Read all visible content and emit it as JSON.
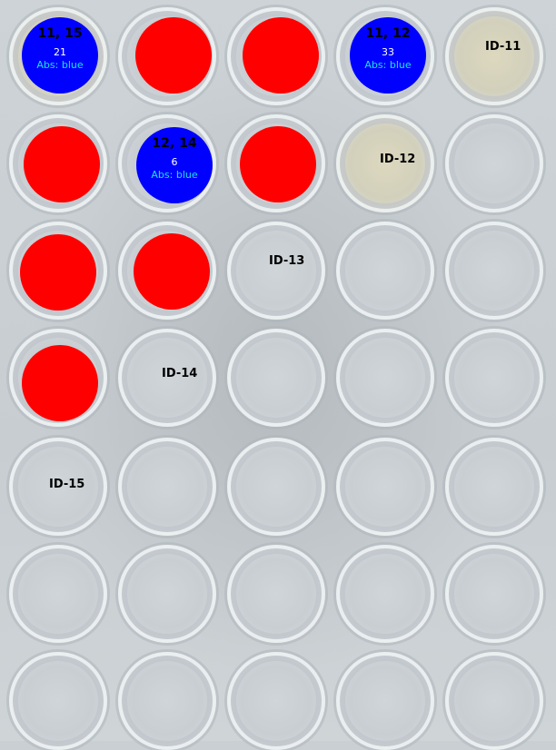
{
  "detections": [
    {
      "coord": "11, 15",
      "count": "21",
      "abs": "Abs: blue"
    },
    {
      "coord": "12, 14",
      "count": "6",
      "abs": "Abs: blue"
    },
    {
      "coord": "11, 12",
      "count": "33",
      "abs": "Abs: blue"
    }
  ],
  "well_ids": [
    "ID-11",
    "ID-12",
    "ID-13",
    "ID-14",
    "ID-15"
  ],
  "colors": {
    "positive": "#ff0000",
    "detected": "#0000ff",
    "abs_text": "#19e6e6"
  }
}
